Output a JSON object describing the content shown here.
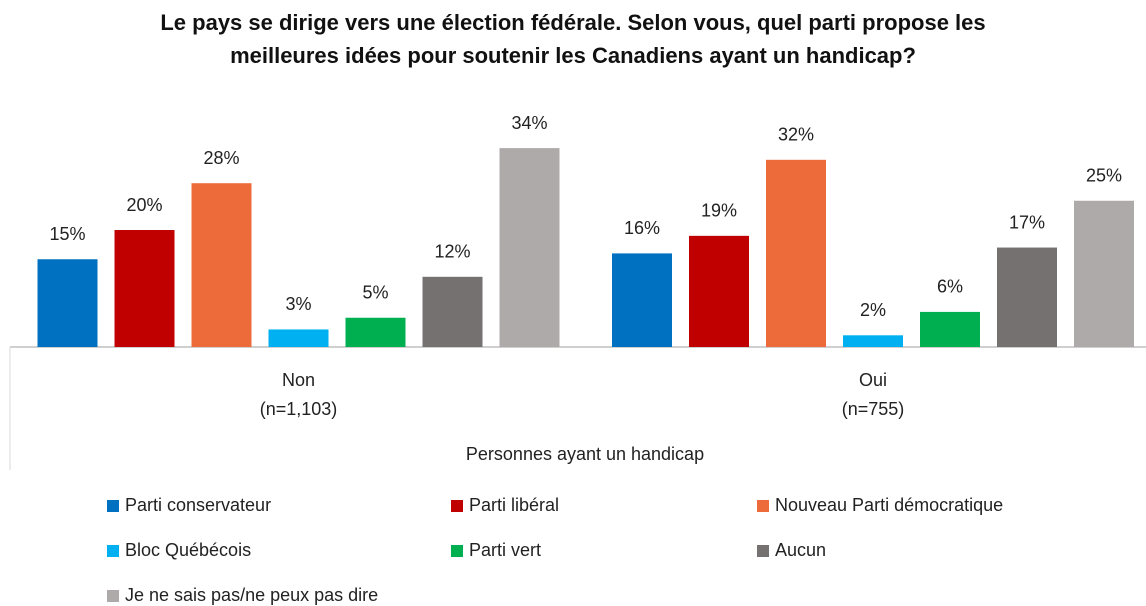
{
  "chart_data": {
    "type": "bar",
    "title": [
      "Le pays se dirige vers une élection fédérale. Selon vous, quel parti propose les",
      "meilleures idées pour soutenir les Canadiens ayant un handicap?"
    ],
    "x_label": "Personnes ayant un handicap",
    "categories": [
      [
        "Non",
        "(n=1,103)"
      ],
      [
        "Oui",
        "(n=755)"
      ]
    ],
    "ylim": [
      0,
      40
    ],
    "series": [
      {
        "name": "Parti conservateur",
        "color": "#0070c0",
        "values": [
          15,
          16
        ],
        "value_labels": [
          "15%",
          "16%"
        ]
      },
      {
        "name": "Parti libéral",
        "color": "#c00000",
        "values": [
          20,
          19
        ],
        "value_labels": [
          "20%",
          "19%"
        ]
      },
      {
        "name": "Nouveau Parti démocratique",
        "color": "#ed6b3a",
        "values": [
          28,
          32
        ],
        "value_labels": [
          "28%",
          "32%"
        ]
      },
      {
        "name": "Bloc Québécois",
        "color": "#00b0f0",
        "values": [
          3,
          2
        ],
        "value_labels": [
          "3%",
          "2%"
        ]
      },
      {
        "name": "Parti vert",
        "color": "#00b050",
        "values": [
          5,
          6
        ],
        "value_labels": [
          "5%",
          "6%"
        ]
      },
      {
        "name": "Aucun",
        "color": "#767171",
        "values": [
          12,
          17
        ],
        "value_labels": [
          "12%",
          "17%"
        ]
      },
      {
        "name": "Je ne sais pas/ne peux pas dire",
        "color": "#aeaaaa",
        "values": [
          34,
          25
        ],
        "value_labels": [
          "34%",
          "25%"
        ]
      }
    ]
  }
}
